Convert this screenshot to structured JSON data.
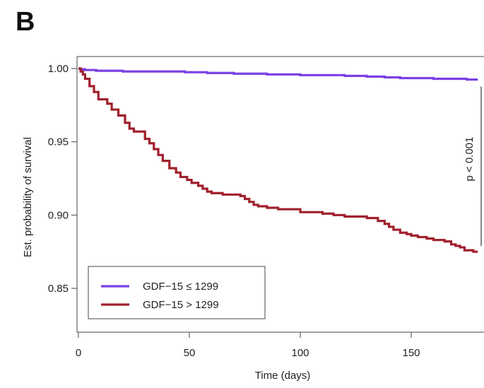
{
  "panel_label": "B",
  "chart_data": {
    "type": "line",
    "title": "",
    "xlabel": "Time (days)",
    "ylabel": "Est. probability of survival",
    "xlim": [
      0,
      180
    ],
    "ylim": [
      0.825,
      1.002
    ],
    "xticks": [
      0,
      50,
      100,
      150
    ],
    "xtick_labels": [
      "0",
      "50",
      "100",
      "150"
    ],
    "yticks": [
      0.85,
      0.9,
      0.95,
      1.0
    ],
    "ytick_labels": [
      "0.85",
      "0.90",
      "0.95",
      "1.00"
    ],
    "grid": false,
    "legend_position": "bottom-left",
    "annotation": "p < 0.001",
    "series": [
      {
        "name": "GDF−15 ≤ 1299",
        "color": "#7b3fe4",
        "step": true,
        "x": [
          0,
          1,
          3,
          8,
          20,
          40,
          48,
          58,
          70,
          85,
          100,
          120,
          130,
          138,
          145,
          160,
          175,
          180
        ],
        "y": [
          1.0,
          0.9995,
          0.999,
          0.9985,
          0.998,
          0.998,
          0.9975,
          0.997,
          0.9965,
          0.996,
          0.9955,
          0.995,
          0.9945,
          0.994,
          0.9935,
          0.993,
          0.9925,
          0.9925
        ]
      },
      {
        "name": "GDF−15 > 1299",
        "color": "#a0202c",
        "step": true,
        "x": [
          0,
          1,
          2,
          3,
          5,
          7,
          9,
          13,
          15,
          18,
          21,
          23,
          25,
          30,
          32,
          34,
          36,
          38,
          41,
          44,
          46,
          49,
          51,
          54,
          56,
          58,
          60,
          65,
          73,
          75,
          77,
          79,
          81,
          85,
          90,
          100,
          110,
          115,
          120,
          130,
          135,
          138,
          140,
          142,
          145,
          148,
          150,
          153,
          157,
          160,
          165,
          168,
          170,
          172,
          174,
          178,
          180
        ],
        "y": [
          1.0,
          0.998,
          0.996,
          0.993,
          0.988,
          0.984,
          0.979,
          0.976,
          0.972,
          0.968,
          0.963,
          0.959,
          0.957,
          0.952,
          0.949,
          0.945,
          0.941,
          0.937,
          0.932,
          0.929,
          0.926,
          0.924,
          0.922,
          0.92,
          0.918,
          0.916,
          0.915,
          0.914,
          0.913,
          0.911,
          0.909,
          0.907,
          0.906,
          0.905,
          0.904,
          0.902,
          0.901,
          0.9,
          0.899,
          0.898,
          0.896,
          0.894,
          0.892,
          0.89,
          0.888,
          0.887,
          0.886,
          0.885,
          0.884,
          0.883,
          0.882,
          0.88,
          0.879,
          0.878,
          0.876,
          0.875,
          0.875
        ]
      }
    ]
  }
}
